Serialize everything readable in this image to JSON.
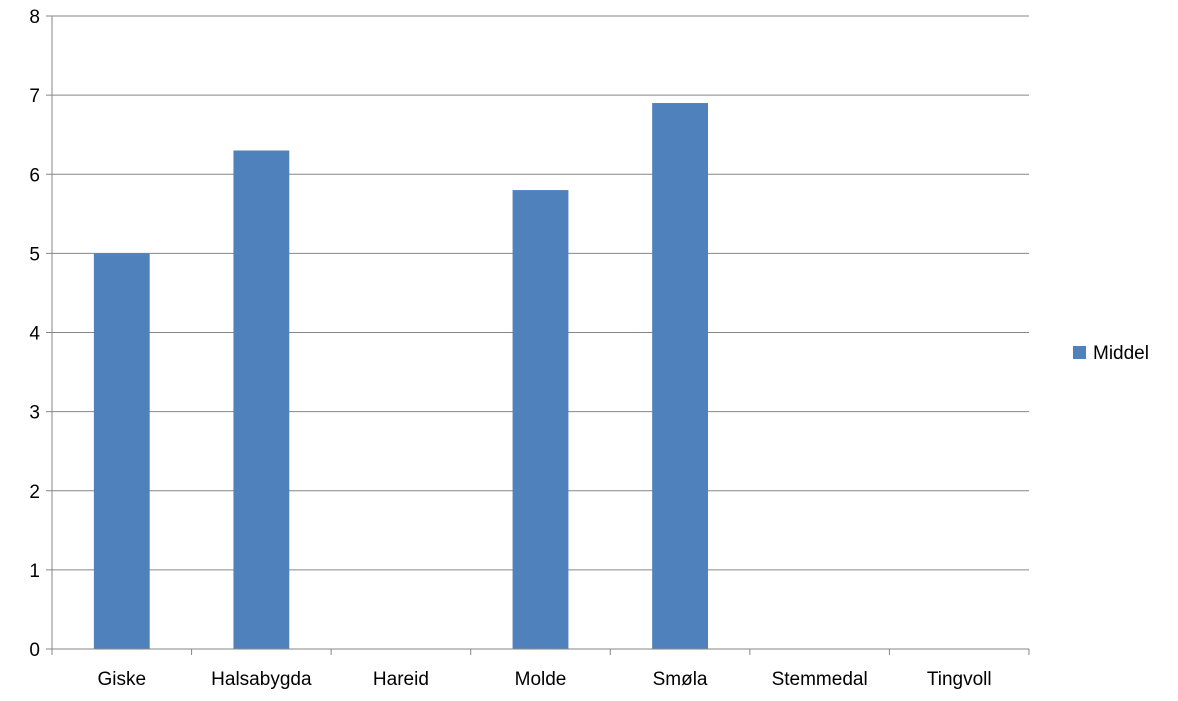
{
  "chart_data": {
    "type": "bar",
    "categories": [
      "Giske",
      "Halsabygda",
      "Hareid",
      "Molde",
      "Smøla",
      "Stemmedal",
      "Tingvoll"
    ],
    "series": [
      {
        "name": "Middel",
        "values": [
          5.0,
          6.3,
          null,
          5.8,
          6.9,
          null,
          null
        ],
        "color": "#4F81BD"
      }
    ],
    "title": "",
    "xlabel": "",
    "ylabel": "",
    "ylim": [
      0,
      8
    ],
    "yticks": [
      "0",
      "1",
      "2",
      "3",
      "4",
      "5",
      "6",
      "7",
      "8"
    ],
    "grid": true,
    "legend": "right",
    "colors": {
      "gridline": "#868686",
      "axis": "#868686",
      "bar": "#4F81BD"
    }
  }
}
